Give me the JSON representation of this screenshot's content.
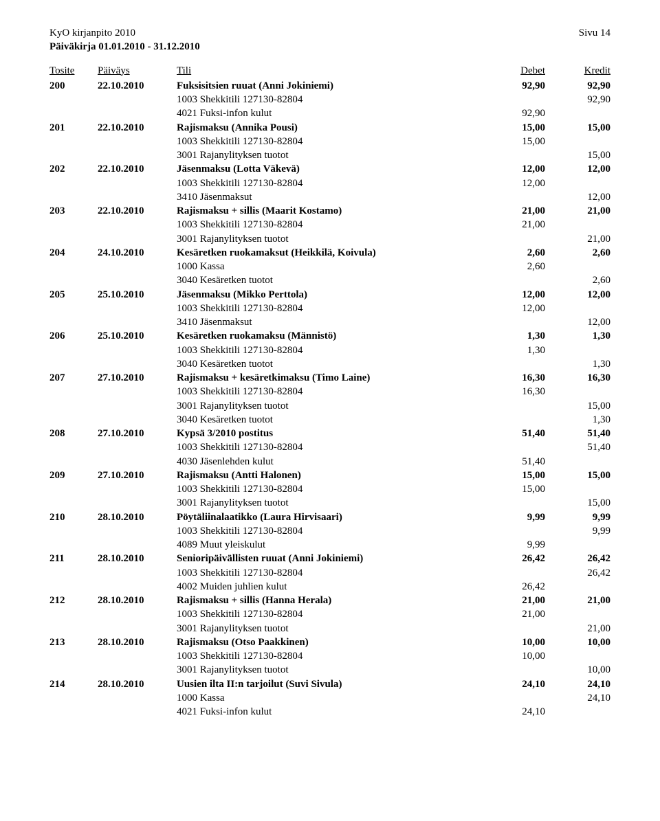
{
  "header": {
    "left_top": "KyO kirjanpito 2010",
    "right_top": "Sivu 14",
    "left_sub": "Päiväkirja 01.01.2010 - 31.12.2010"
  },
  "columns": {
    "tosite": "Tosite",
    "paivays": "Päiväys",
    "tili": "Tili",
    "debet": "Debet",
    "kredit": "Kredit"
  },
  "entries": [
    {
      "num": "200",
      "date": "22.10.2010",
      "desc": "Fuksisitsien ruuat (Anni Jokiniemi)",
      "debet": "92,90",
      "kredit": "92,90",
      "lines": [
        {
          "acct": "1003 Shekkitili 127130-82804",
          "a1": "",
          "a2": "92,90"
        },
        {
          "acct": "4021 Fuksi-infon kulut",
          "a1": "92,90",
          "a2": ""
        }
      ]
    },
    {
      "num": "201",
      "date": "22.10.2010",
      "desc": "Rajismaksu (Annika Pousi)",
      "debet": "15,00",
      "kredit": "15,00",
      "lines": [
        {
          "acct": "1003 Shekkitili 127130-82804",
          "a1": "15,00",
          "a2": ""
        },
        {
          "acct": "3001 Rajanylityksen tuotot",
          "a1": "",
          "a2": "15,00"
        }
      ]
    },
    {
      "num": "202",
      "date": "22.10.2010",
      "desc": "Jäsenmaksu (Lotta Väkevä)",
      "debet": "12,00",
      "kredit": "12,00",
      "lines": [
        {
          "acct": "1003 Shekkitili 127130-82804",
          "a1": "12,00",
          "a2": ""
        },
        {
          "acct": "3410 Jäsenmaksut",
          "a1": "",
          "a2": "12,00"
        }
      ]
    },
    {
      "num": "203",
      "date": "22.10.2010",
      "desc": "Rajismaksu + sillis (Maarit Kostamo)",
      "debet": "21,00",
      "kredit": "21,00",
      "lines": [
        {
          "acct": "1003 Shekkitili 127130-82804",
          "a1": "21,00",
          "a2": ""
        },
        {
          "acct": "3001 Rajanylityksen tuotot",
          "a1": "",
          "a2": "21,00"
        }
      ]
    },
    {
      "num": "204",
      "date": "24.10.2010",
      "desc": "Kesäretken ruokamaksut (Heikkilä, Koivula)",
      "debet": "2,60",
      "kredit": "2,60",
      "lines": [
        {
          "acct": "1000 Kassa",
          "a1": "2,60",
          "a2": ""
        },
        {
          "acct": "3040 Kesäretken tuotot",
          "a1": "",
          "a2": "2,60"
        }
      ]
    },
    {
      "num": "205",
      "date": "25.10.2010",
      "desc": "Jäsenmaksu (Mikko Perttola)",
      "debet": "12,00",
      "kredit": "12,00",
      "lines": [
        {
          "acct": "1003 Shekkitili 127130-82804",
          "a1": "12,00",
          "a2": ""
        },
        {
          "acct": "3410 Jäsenmaksut",
          "a1": "",
          "a2": "12,00"
        }
      ]
    },
    {
      "num": "206",
      "date": "25.10.2010",
      "desc": "Kesäretken ruokamaksu (Männistö)",
      "debet": "1,30",
      "kredit": "1,30",
      "lines": [
        {
          "acct": "1003 Shekkitili 127130-82804",
          "a1": "1,30",
          "a2": ""
        },
        {
          "acct": "3040 Kesäretken tuotot",
          "a1": "",
          "a2": "1,30"
        }
      ]
    },
    {
      "num": "207",
      "date": "27.10.2010",
      "desc": "Rajismaksu + kesäretkimaksu (Timo Laine)",
      "debet": "16,30",
      "kredit": "16,30",
      "lines": [
        {
          "acct": "1003 Shekkitili 127130-82804",
          "a1": "16,30",
          "a2": ""
        },
        {
          "acct": "3001 Rajanylityksen tuotot",
          "a1": "",
          "a2": "15,00"
        },
        {
          "acct": "3040 Kesäretken tuotot",
          "a1": "",
          "a2": "1,30"
        }
      ]
    },
    {
      "num": "208",
      "date": "27.10.2010",
      "desc": "Kypsä 3/2010 postitus",
      "debet": "51,40",
      "kredit": "51,40",
      "lines": [
        {
          "acct": "1003 Shekkitili 127130-82804",
          "a1": "",
          "a2": "51,40"
        },
        {
          "acct": "4030 Jäsenlehden kulut",
          "a1": "51,40",
          "a2": ""
        }
      ]
    },
    {
      "num": "209",
      "date": "27.10.2010",
      "desc": "Rajismaksu (Antti Halonen)",
      "debet": "15,00",
      "kredit": "15,00",
      "lines": [
        {
          "acct": "1003 Shekkitili 127130-82804",
          "a1": "15,00",
          "a2": ""
        },
        {
          "acct": "3001 Rajanylityksen tuotot",
          "a1": "",
          "a2": "15,00"
        }
      ]
    },
    {
      "num": "210",
      "date": "28.10.2010",
      "desc": "Pöytäliinalaatikko (Laura Hirvisaari)",
      "debet": "9,99",
      "kredit": "9,99",
      "lines": [
        {
          "acct": "1003 Shekkitili 127130-82804",
          "a1": "",
          "a2": "9,99"
        },
        {
          "acct": "4089 Muut yleiskulut",
          "a1": "9,99",
          "a2": ""
        }
      ]
    },
    {
      "num": "211",
      "date": "28.10.2010",
      "desc": "Senioripäivällisten ruuat (Anni Jokiniemi)",
      "debet": "26,42",
      "kredit": "26,42",
      "lines": [
        {
          "acct": "1003 Shekkitili 127130-82804",
          "a1": "",
          "a2": "26,42"
        },
        {
          "acct": "4002 Muiden juhlien kulut",
          "a1": "26,42",
          "a2": ""
        }
      ]
    },
    {
      "num": "212",
      "date": "28.10.2010",
      "desc": "Rajismaksu + sillis (Hanna Herala)",
      "debet": "21,00",
      "kredit": "21,00",
      "lines": [
        {
          "acct": "1003 Shekkitili 127130-82804",
          "a1": "21,00",
          "a2": ""
        },
        {
          "acct": "3001 Rajanylityksen tuotot",
          "a1": "",
          "a2": "21,00"
        }
      ]
    },
    {
      "num": "213",
      "date": "28.10.2010",
      "desc": "Rajismaksu (Otso Paakkinen)",
      "debet": "10,00",
      "kredit": "10,00",
      "lines": [
        {
          "acct": "1003 Shekkitili 127130-82804",
          "a1": "10,00",
          "a2": ""
        },
        {
          "acct": "3001 Rajanylityksen tuotot",
          "a1": "",
          "a2": "10,00"
        }
      ]
    },
    {
      "num": "214",
      "date": "28.10.2010",
      "desc": "Uusien ilta II:n tarjoilut (Suvi Sivula)",
      "debet": "24,10",
      "kredit": "24,10",
      "lines": [
        {
          "acct": "1000 Kassa",
          "a1": "",
          "a2": "24,10"
        },
        {
          "acct": "4021 Fuksi-infon kulut",
          "a1": "24,10",
          "a2": ""
        }
      ]
    }
  ]
}
